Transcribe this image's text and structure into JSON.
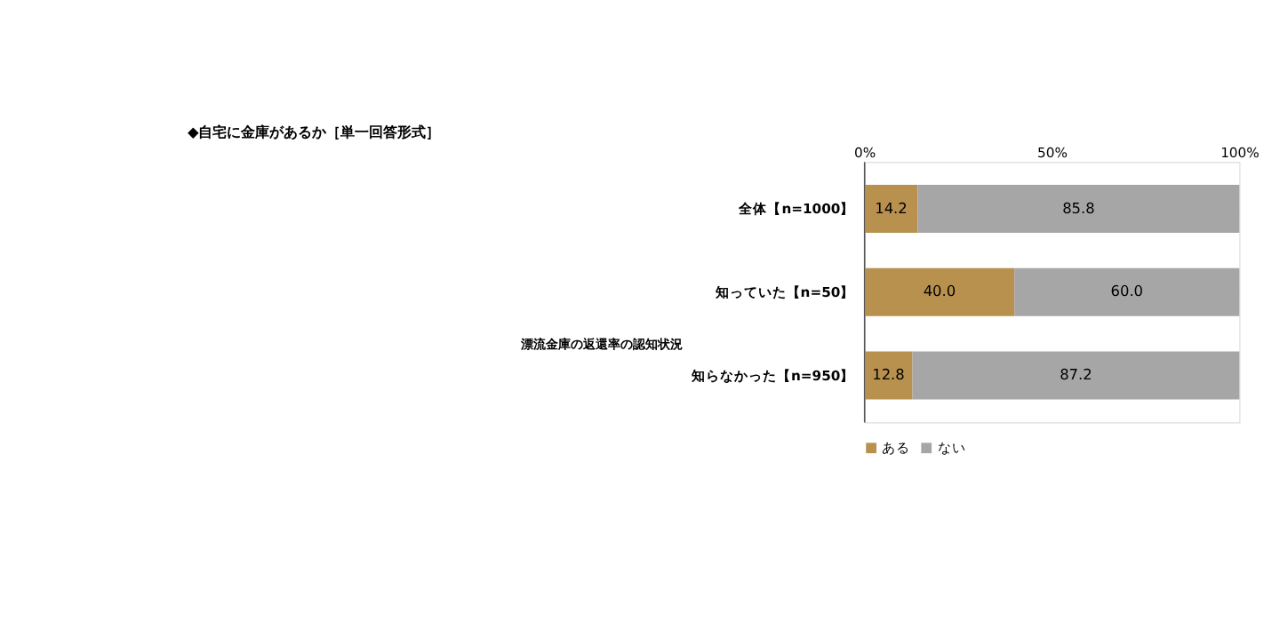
{
  "chart_data": {
    "type": "bar",
    "orientation": "horizontal",
    "stacked": true,
    "title": "◆自宅に金庫があるか［単一回答形式］",
    "categories": [
      "全体【n=1000】",
      "知っていた【n=50】",
      "知らなかった【n=950】"
    ],
    "series": [
      {
        "name": "ある",
        "color": "#b8914f",
        "values": [
          14.2,
          40.0,
          12.8
        ],
        "value_labels": [
          "14.2",
          "40.0",
          "12.8"
        ]
      },
      {
        "name": "ない",
        "color": "#a6a6a6",
        "values": [
          85.8,
          60.0,
          87.2
        ],
        "value_labels": [
          "85.8",
          "60.0",
          "87.2"
        ]
      }
    ],
    "xlim": [
      0,
      100
    ],
    "xticks": [
      {
        "value": 0,
        "label": "0%"
      },
      {
        "value": 50,
        "label": "50%"
      },
      {
        "value": 100,
        "label": "100%"
      }
    ],
    "legend": "bottom",
    "grid": false,
    "annotations": [
      "漂流金庫の返還率の認知状況"
    ]
  }
}
